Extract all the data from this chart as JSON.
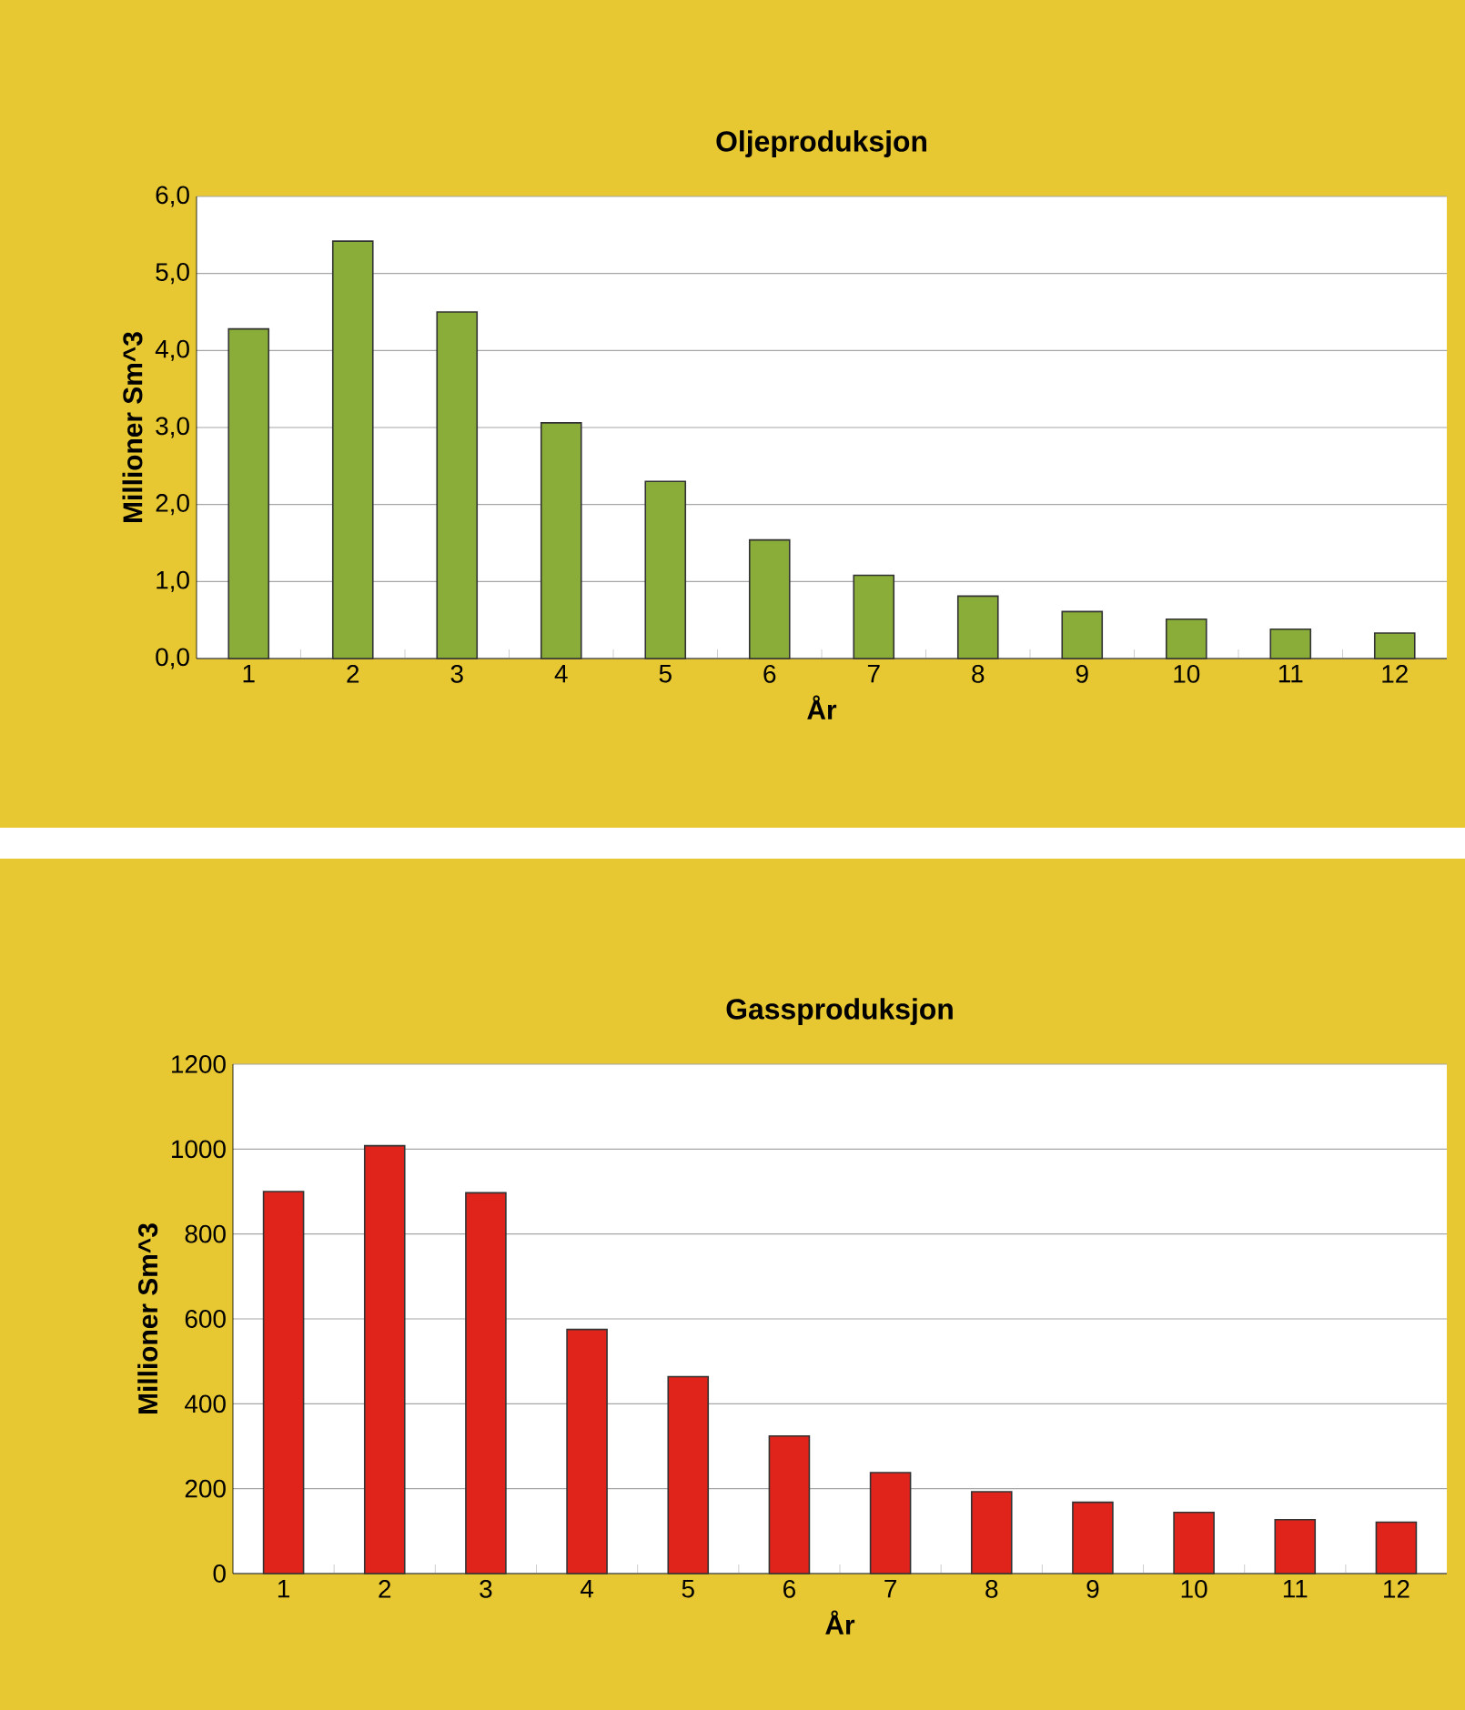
{
  "chart_data": [
    {
      "type": "bar",
      "title": "Oljeproduksjon",
      "xlabel": "År",
      "ylabel": "Millioner Sm^3",
      "categories": [
        "1",
        "2",
        "3",
        "4",
        "5",
        "6",
        "7",
        "8",
        "9",
        "10",
        "11",
        "12"
      ],
      "values": [
        4.28,
        5.42,
        4.5,
        3.06,
        2.3,
        1.54,
        1.08,
        0.81,
        0.61,
        0.51,
        0.38,
        0.33
      ],
      "color": "#8aad3a",
      "ylim": [
        0,
        6
      ],
      "yticks": [
        {
          "value": 0,
          "label": "0,0"
        },
        {
          "value": 1,
          "label": "1,0"
        },
        {
          "value": 2,
          "label": "2,0"
        },
        {
          "value": 3,
          "label": "3,0"
        },
        {
          "value": 4,
          "label": "4,0"
        },
        {
          "value": 5,
          "label": "5,0"
        },
        {
          "value": 6,
          "label": "6,0"
        }
      ],
      "grid": "y"
    },
    {
      "type": "bar",
      "title": "Gassproduksjon",
      "xlabel": "År",
      "ylabel": "Millioner Sm^3",
      "categories": [
        "1",
        "2",
        "3",
        "4",
        "5",
        "6",
        "7",
        "8",
        "9",
        "10",
        "11",
        "12"
      ],
      "values": [
        900,
        1008,
        897,
        575,
        464,
        324,
        238,
        193,
        168,
        144,
        127,
        121
      ],
      "color": "#e0241c",
      "ylim": [
        0,
        1200
      ],
      "yticks": [
        0,
        200,
        400,
        600,
        800,
        1000,
        1200
      ],
      "grid": "y"
    }
  ]
}
